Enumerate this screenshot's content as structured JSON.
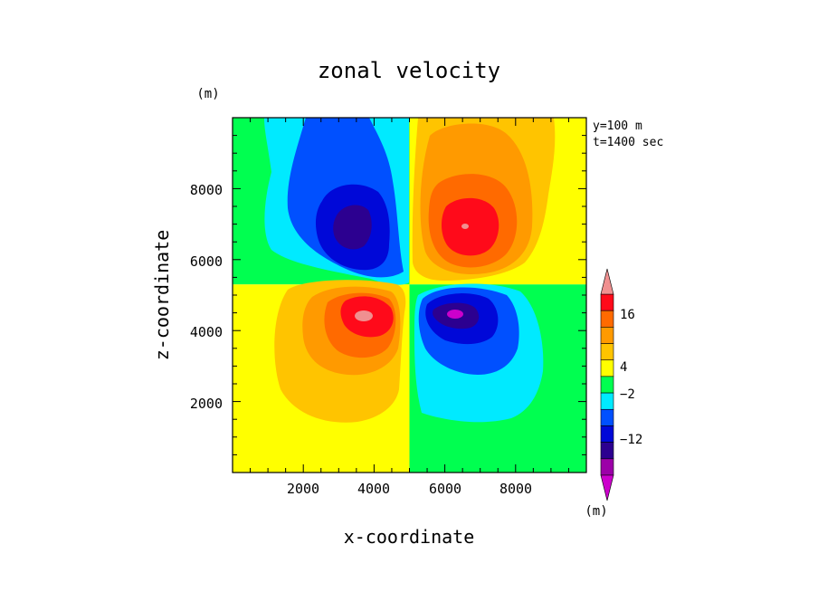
{
  "chart_data": {
    "type": "heatmap",
    "subtype": "filled-contour",
    "title": "zonal velocity",
    "xlabel": "x-coordinate",
    "ylabel": "z-coordinate",
    "x_unit": "(m)",
    "y_unit": "(m)",
    "xlim": [
      0,
      10000
    ],
    "ylim": [
      0,
      10000
    ],
    "xticks": [
      2000,
      4000,
      6000,
      8000
    ],
    "xtick_labels": [
      "2000",
      "4000",
      "6000",
      "8000"
    ],
    "yticks": [
      2000,
      4000,
      6000,
      8000
    ],
    "ytick_labels": [
      "2000",
      "4000",
      "6000",
      "8000"
    ],
    "annotations": [
      "y=100 m",
      "t=1400 sec"
    ],
    "field": {
      "description": "four-lobe quadrupole pattern of zonal velocity",
      "background_left_top": "green",
      "background_right_top": "yellow",
      "background_left_bottom": "yellow",
      "background_right_bottom": "green",
      "boundary_x": 5000,
      "boundary_z": 5300,
      "extrema": [
        {
          "name": "upper-left minimum",
          "x": 3600,
          "z": 6900,
          "value": -18
        },
        {
          "name": "upper-right maximum",
          "x": 6450,
          "z": 6950,
          "value": 18
        },
        {
          "name": "lower-left maximum",
          "x": 3700,
          "z": 4500,
          "value": 20
        },
        {
          "name": "lower-right minimum",
          "x": 6400,
          "z": 4500,
          "value": -18
        }
      ]
    },
    "colorbar": {
      "levels": [
        -20,
        -16,
        -12,
        -8,
        -4,
        -2,
        2,
        4,
        8,
        12,
        16,
        20
      ],
      "colors": [
        "#cc00cc",
        "#9c00a8",
        "#2c0090",
        "#0008d8",
        "#0050ff",
        "#00eaff",
        "#00ff50",
        "#ffff00",
        "#ffc400",
        "#ff9a00",
        "#ff6a00",
        "#ff0a1a",
        "#f09090"
      ],
      "tick_labels": [
        "16",
        "4",
        "−2",
        "−12"
      ],
      "tick_values": [
        16,
        4,
        -2,
        -12
      ],
      "extend": "both",
      "unit": "(m)"
    }
  }
}
